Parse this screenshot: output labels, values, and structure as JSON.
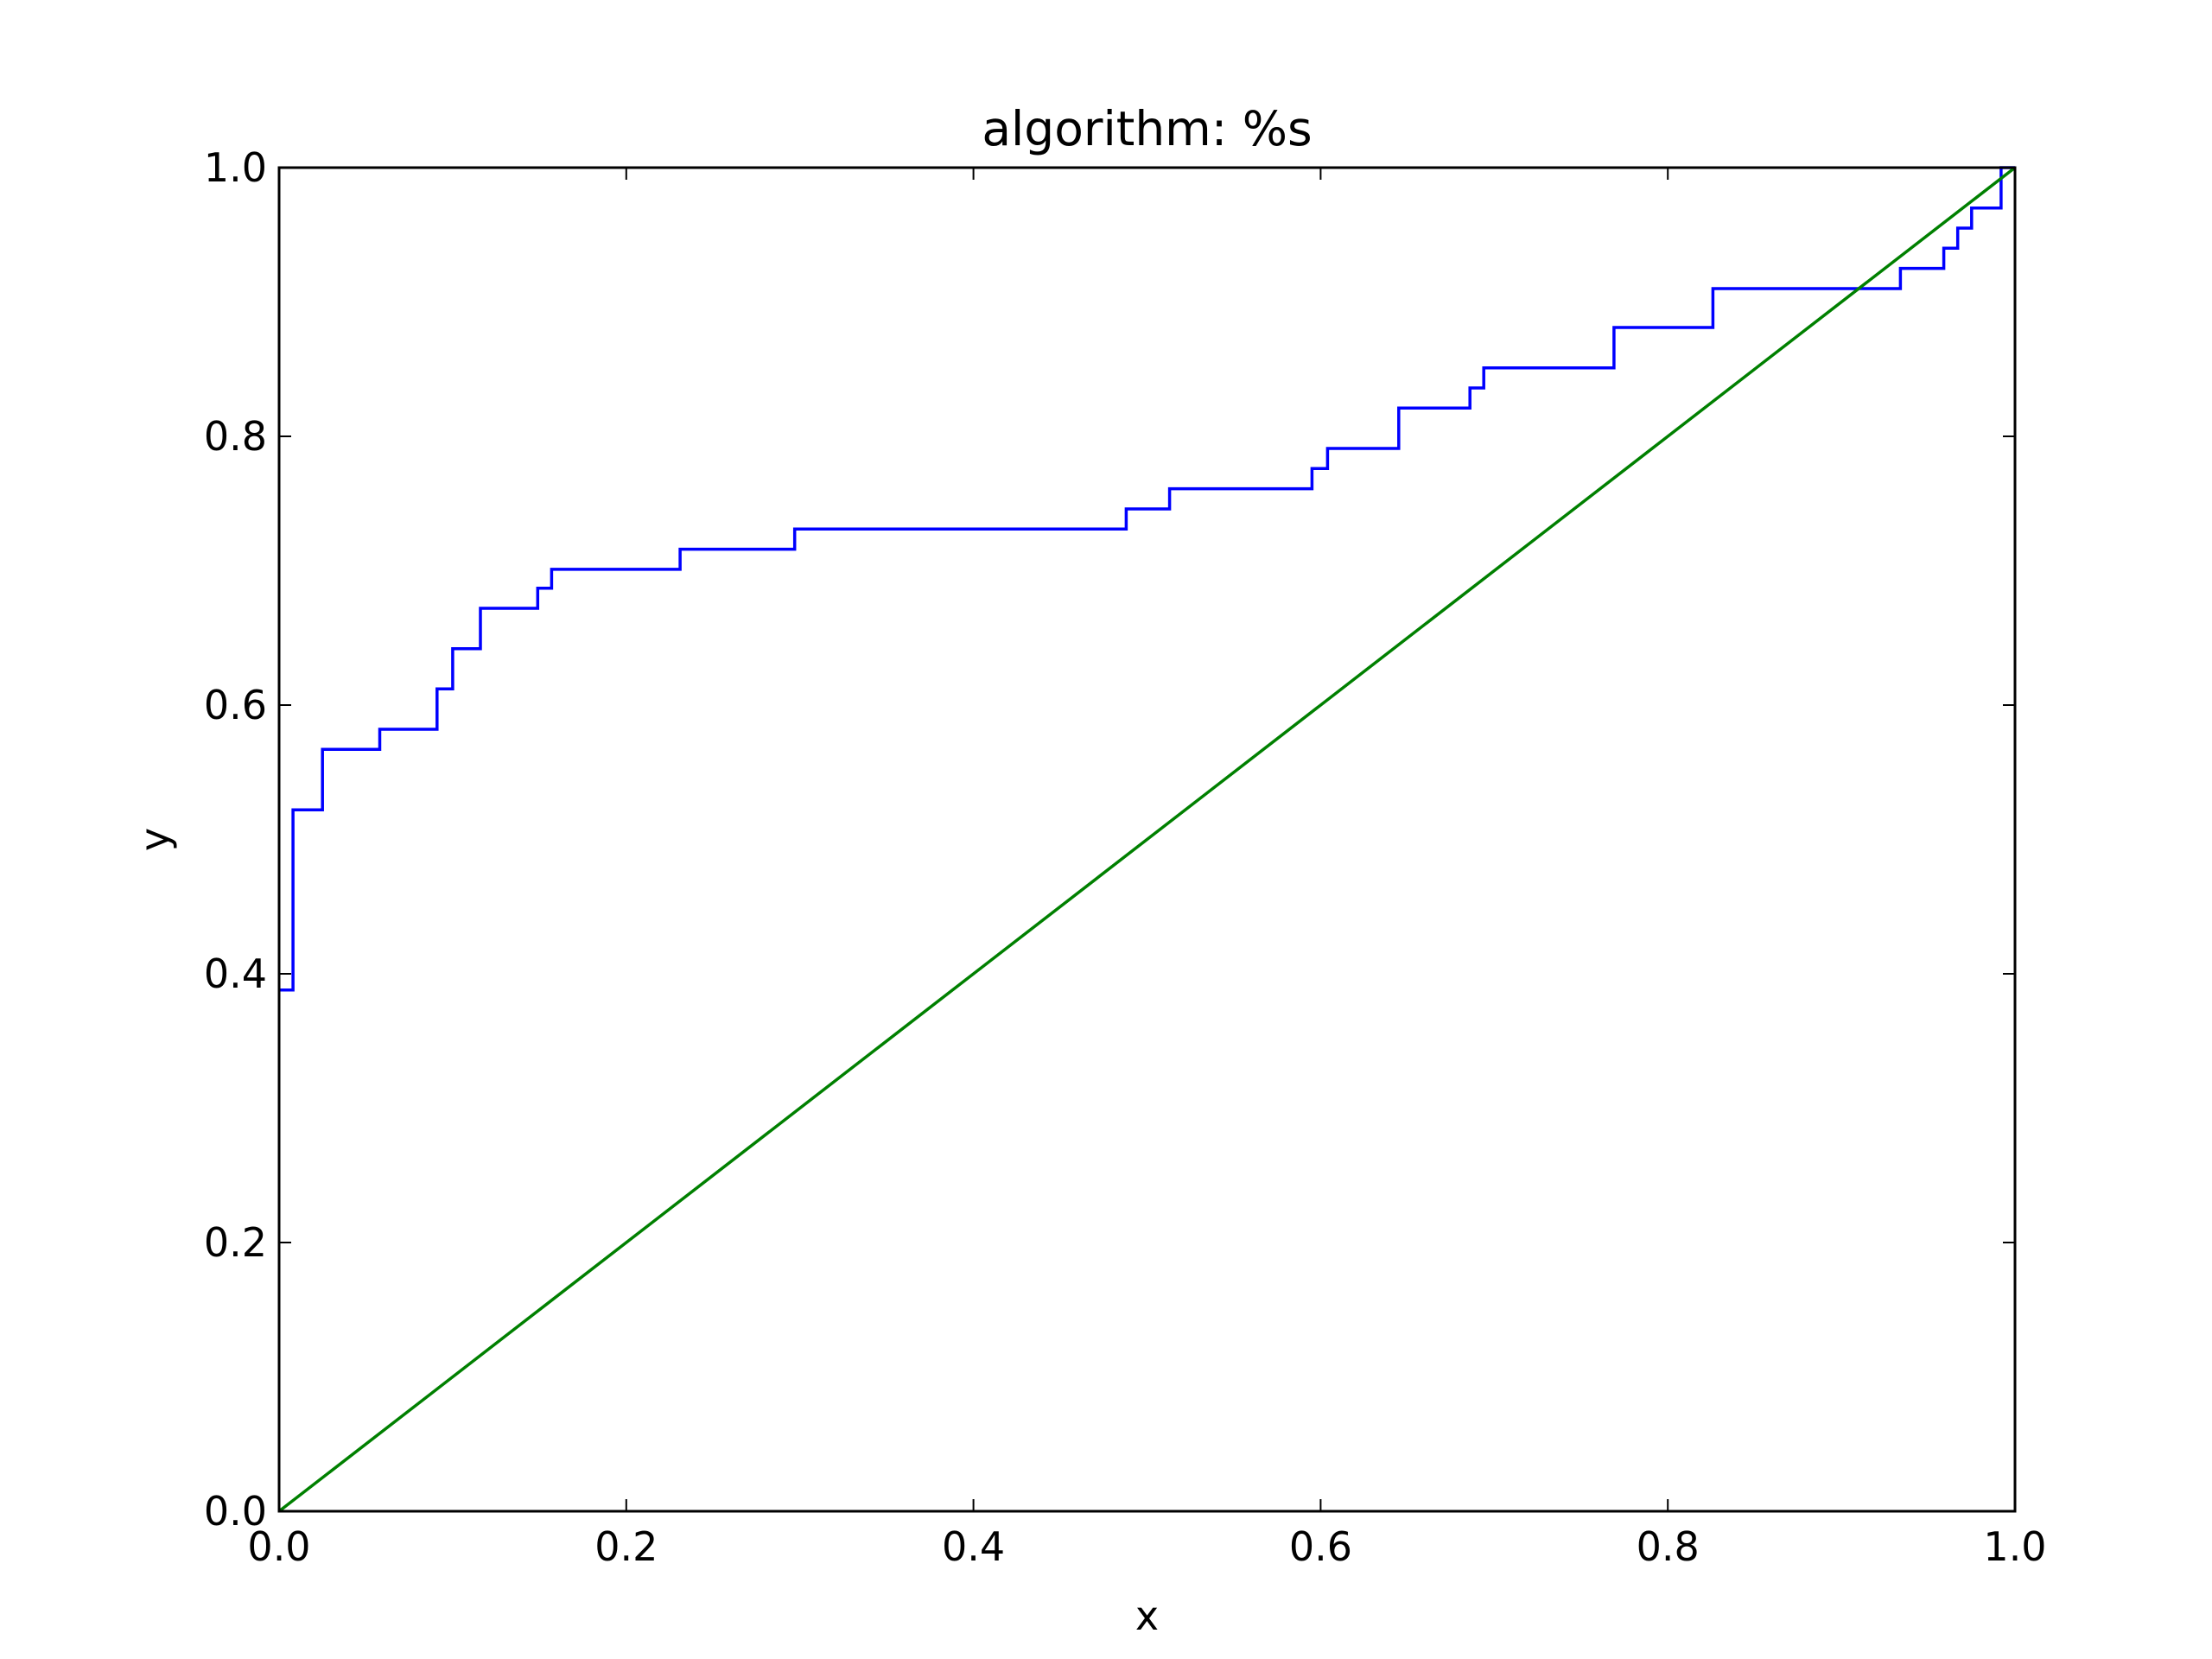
{
  "chart_data": {
    "type": "line",
    "title": "algorithm: %s",
    "xlabel": "x",
    "ylabel": "y",
    "xlim": [
      0.0,
      1.0
    ],
    "ylim": [
      0.0,
      1.0
    ],
    "xticks": [
      "0.0",
      "0.2",
      "0.4",
      "0.6",
      "0.8",
      "1.0"
    ],
    "yticks": [
      "0.0",
      "0.2",
      "0.4",
      "0.6",
      "0.8",
      "1.0"
    ],
    "grid": false,
    "legend": "none",
    "series": [
      {
        "style": "step",
        "color": "#0000ff",
        "x": [
          0.0,
          0.008,
          0.008,
          0.025,
          0.025,
          0.058,
          0.058,
          0.091,
          0.091,
          0.1,
          0.1,
          0.116,
          0.116,
          0.149,
          0.149,
          0.157,
          0.157,
          0.231,
          0.231,
          0.297,
          0.297,
          0.488,
          0.488,
          0.513,
          0.513,
          0.595,
          0.595,
          0.604,
          0.604,
          0.645,
          0.645,
          0.686,
          0.686,
          0.694,
          0.694,
          0.769,
          0.769,
          0.826,
          0.826,
          0.934,
          0.934,
          0.959,
          0.959,
          0.967,
          0.967,
          0.975,
          0.975,
          0.992,
          0.992,
          1.0
        ],
        "y": [
          0.388,
          0.388,
          0.522,
          0.522,
          0.567,
          0.567,
          0.582,
          0.582,
          0.612,
          0.612,
          0.642,
          0.642,
          0.672,
          0.672,
          0.687,
          0.687,
          0.701,
          0.701,
          0.716,
          0.716,
          0.731,
          0.731,
          0.746,
          0.746,
          0.761,
          0.761,
          0.776,
          0.776,
          0.791,
          0.791,
          0.821,
          0.821,
          0.836,
          0.836,
          0.851,
          0.851,
          0.881,
          0.881,
          0.91,
          0.91,
          0.925,
          0.925,
          0.94,
          0.94,
          0.955,
          0.955,
          0.97,
          0.97,
          1.0,
          1.0
        ]
      },
      {
        "style": "line",
        "color": "#008000",
        "x": [
          0.0,
          1.0
        ],
        "y": [
          0.0,
          1.0
        ]
      }
    ]
  }
}
